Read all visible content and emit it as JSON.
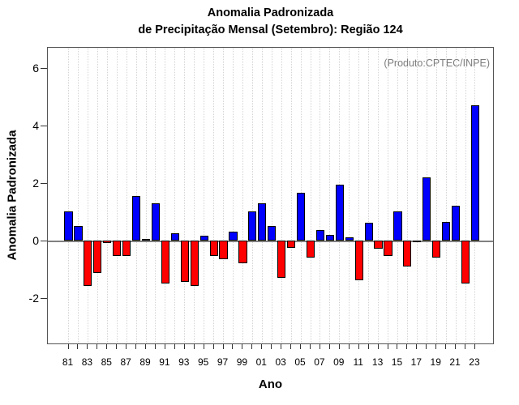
{
  "title": {
    "line1": "Anomalia Padronizada",
    "line2": "de Precipitação Mensal (Setembro): Região 124"
  },
  "annotation": "(Produto:CPTEC/INPE)",
  "axes": {
    "ylabel": "Anomalia Padronizada",
    "xlabel": "Ano"
  },
  "colors": {
    "positive": "#0000ff",
    "negative": "#ff0000",
    "bar_border": "#000000",
    "zero_line": "#808080",
    "grid": "#d4d4d4",
    "box_border": "#555555",
    "annotation_text": "#7d7d7d"
  },
  "chart_data": {
    "type": "bar",
    "title": "Anomalia Padronizada de Precipitação Mensal (Setembro): Região 124",
    "xlabel": "Ano",
    "ylabel": "Anomalia Padronizada",
    "categories": [
      "81",
      "82",
      "83",
      "84",
      "85",
      "86",
      "87",
      "88",
      "89",
      "90",
      "91",
      "92",
      "93",
      "94",
      "95",
      "96",
      "97",
      "98",
      "99",
      "00",
      "01",
      "02",
      "03",
      "04",
      "05",
      "06",
      "07",
      "08",
      "09",
      "10",
      "11",
      "12",
      "13",
      "14",
      "15",
      "16",
      "17",
      "18",
      "19",
      "20",
      "21",
      "22",
      "23"
    ],
    "values": [
      1.0,
      0.5,
      -1.6,
      -1.15,
      -0.1,
      -0.55,
      -0.55,
      1.55,
      0.05,
      1.3,
      -1.5,
      0.25,
      -1.45,
      -1.6,
      0.15,
      -0.55,
      -0.65,
      0.3,
      -0.8,
      1.0,
      1.3,
      0.5,
      -1.3,
      -0.25,
      1.65,
      -0.6,
      0.35,
      0.2,
      1.95,
      0.1,
      -1.4,
      0.6,
      -0.3,
      -0.55,
      1.0,
      -0.9,
      -0.03,
      2.2,
      -0.6,
      0.65,
      1.2,
      -1.5,
      4.7
    ],
    "labeled_categories": [
      "81",
      "83",
      "85",
      "87",
      "89",
      "91",
      "93",
      "95",
      "97",
      "99",
      "01",
      "03",
      "05",
      "07",
      "09",
      "11",
      "13",
      "15",
      "17",
      "19",
      "21",
      "23"
    ],
    "yticks": [
      6,
      4,
      2,
      0,
      -2
    ],
    "ylim": [
      -3.6,
      6.7
    ],
    "grid": "vertical-dotted-per-year",
    "legend": "none",
    "bar_color_rule": "blue if value >= 0, red if value < 0"
  }
}
